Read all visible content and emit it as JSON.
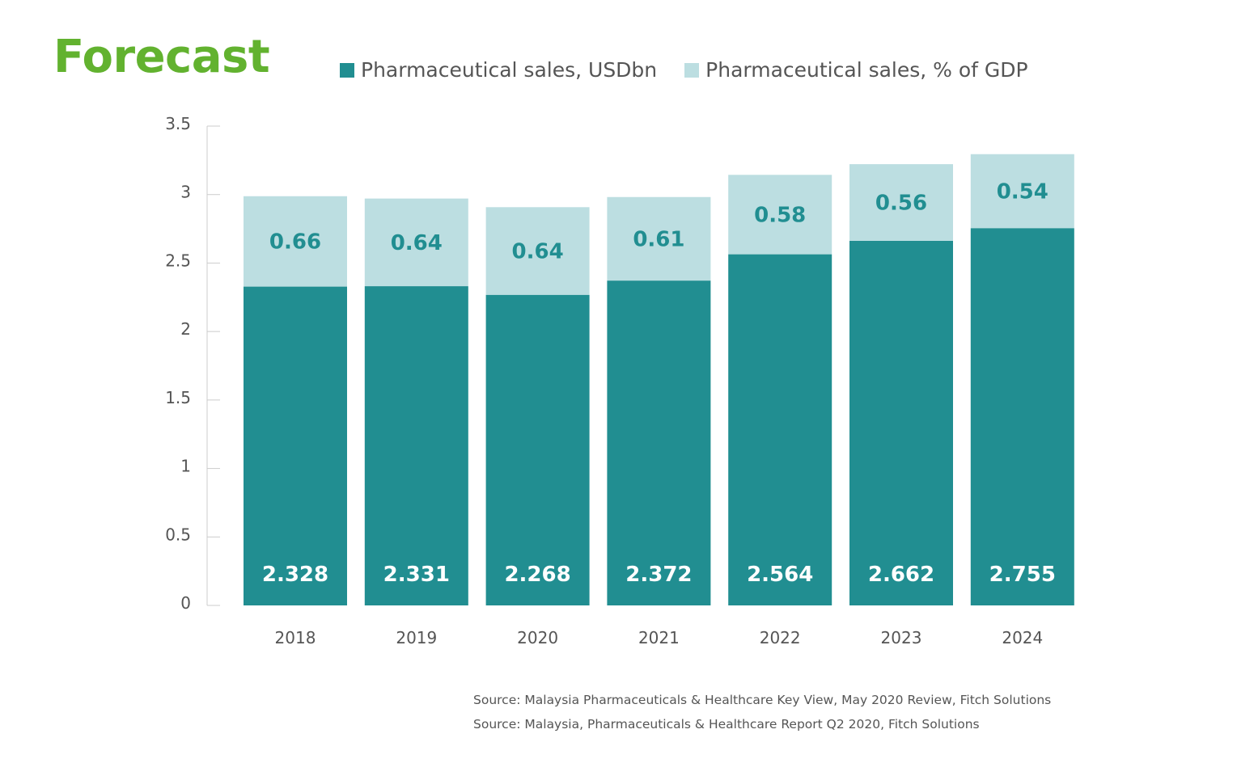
{
  "title": "Forecast",
  "colors": {
    "title": "#62b22f",
    "usd": "#218e91",
    "gdp": "#bcdee1",
    "text": "#555555"
  },
  "legend": [
    {
      "label": "Pharmaceutical sales, USDbn",
      "color": "#218e91"
    },
    {
      "label": "Pharmaceutical sales, % of GDP",
      "color": "#bcdee1"
    }
  ],
  "chart_data": {
    "type": "bar",
    "stacked": true,
    "categories": [
      "2018",
      "2019",
      "2020",
      "2021",
      "2022",
      "2023",
      "2024"
    ],
    "series": [
      {
        "name": "Pharmaceutical sales, USDbn",
        "values": [
          2.328,
          2.331,
          2.268,
          2.372,
          2.564,
          2.662,
          2.755
        ]
      },
      {
        "name": "Pharmaceutical sales, % of GDP",
        "values": [
          0.66,
          0.64,
          0.64,
          0.61,
          0.58,
          0.56,
          0.54
        ]
      }
    ],
    "data_labels": {
      "usd": [
        "2.328",
        "2.331",
        "2.268",
        "2.372",
        "2.564",
        "2.662",
        "2.755"
      ],
      "gdp": [
        "0.66",
        "0.64",
        "0.64",
        "0.61",
        "0.58",
        "0.56",
        "0.54"
      ]
    },
    "ylim": [
      0,
      3.5
    ],
    "yticks": [
      0,
      0.5,
      1,
      1.5,
      2,
      2.5,
      3,
      3.5
    ],
    "ytick_labels": [
      "0",
      "0.5",
      "1",
      "1.5",
      "2",
      "2.5",
      "3",
      "3.5"
    ],
    "grid": false,
    "legend_position": "top"
  },
  "sources": [
    "Source: Malaysia Pharmaceuticals & Healthcare Key View, May 2020 Review, Fitch Solutions",
    "Source: Malaysia, Pharmaceuticals & Healthcare Report Q2 2020, Fitch Solutions"
  ]
}
